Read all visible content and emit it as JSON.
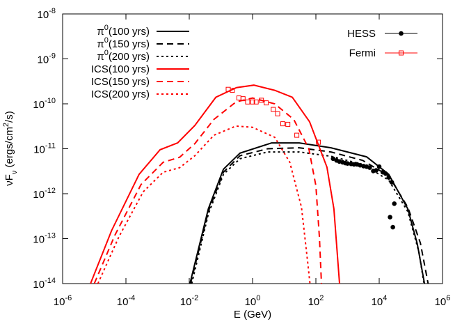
{
  "chart_data": {
    "type": "line",
    "xscale": "log",
    "yscale": "log",
    "xlabel": "E (GeV)",
    "ylabel": [
      "νF",
      "ν",
      " (ergs/cm",
      "2",
      "/s)"
    ],
    "xlim": [
      1e-06,
      1000000.0
    ],
    "ylim": [
      1e-14,
      1e-08
    ],
    "xticks": [
      {
        "value": 1e-06,
        "label": [
          "10",
          "-6"
        ]
      },
      {
        "value": 0.0001,
        "label": [
          "10",
          "-4"
        ]
      },
      {
        "value": 0.01,
        "label": [
          "10",
          "-2"
        ]
      },
      {
        "value": 1,
        "label": [
          "10",
          "0"
        ]
      },
      {
        "value": 100,
        "label": [
          "10",
          "2"
        ]
      },
      {
        "value": 10000.0,
        "label": [
          "10",
          "4"
        ]
      },
      {
        "value": 1000000.0,
        "label": [
          "10",
          "6"
        ]
      }
    ],
    "yticks": [
      {
        "value": 1e-14,
        "label": [
          "10",
          "-14"
        ]
      },
      {
        "value": 1e-13,
        "label": [
          "10",
          "-13"
        ]
      },
      {
        "value": 1e-12,
        "label": [
          "10",
          "-12"
        ]
      },
      {
        "value": 1e-11,
        "label": [
          "10",
          "-11"
        ]
      },
      {
        "value": 1e-10,
        "label": [
          "10",
          "-10"
        ]
      },
      {
        "value": 1e-09,
        "label": [
          "10",
          "-9"
        ]
      },
      {
        "value": 1e-08,
        "label": [
          "10",
          "-8"
        ]
      }
    ],
    "series": [
      {
        "name": [
          "π",
          "0",
          "(100 yrs)"
        ],
        "color": "#000000",
        "style": "solid",
        "legend": "left",
        "x": [
          0.0105,
          0.04,
          0.12,
          0.4,
          4,
          30,
          300,
          4000,
          20000,
          80000,
          160000,
          270000
        ],
        "values": [
          1e-14,
          4.6e-13,
          3.5e-12,
          8e-12,
          1.35e-11,
          1.35e-11,
          1.05e-11,
          6.6e-12,
          2.7e-12,
          4.6e-13,
          7.6e-14,
          1e-14
        ]
      },
      {
        "name": [
          "π",
          "0",
          "(150 yrs)"
        ],
        "color": "#000000",
        "style": "dashed",
        "legend": "left",
        "x": [
          0.011,
          0.04,
          0.12,
          0.4,
          3,
          30,
          300,
          3000,
          20000,
          80000,
          200000,
          350000
        ],
        "values": [
          1e-14,
          4e-13,
          3e-12,
          7e-12,
          1e-11,
          1.05e-11,
          8.5e-12,
          5.5e-12,
          2.5e-12,
          5e-13,
          8e-14,
          1e-14
        ]
      },
      {
        "name": [
          "π",
          "0",
          "(200 yrs)"
        ],
        "color": "#000000",
        "style": "dotted",
        "legend": "left",
        "x": [
          0.012,
          0.04,
          0.12,
          0.4,
          3,
          30,
          300,
          3000,
          20000,
          80000,
          180000,
          260000
        ],
        "values": [
          1e-14,
          3.5e-13,
          2.7e-12,
          6e-12,
          8.5e-12,
          8.5e-12,
          6.8e-12,
          4.5e-12,
          2e-12,
          4e-13,
          5e-14,
          1e-14
        ]
      },
      {
        "name": "ICS(100 yrs)",
        "color": "#ff0000",
        "style": "solid",
        "legend": "left",
        "x": [
          7.6e-06,
          3.5e-05,
          0.00026,
          0.0012,
          0.0043,
          0.015,
          0.069,
          0.31,
          1.1,
          5,
          18,
          63,
          224,
          370,
          560
        ],
        "values": [
          1e-14,
          1.5e-13,
          2.7e-12,
          9.5e-12,
          1.35e-11,
          3.3e-11,
          1.4e-10,
          2.3e-10,
          2.6e-10,
          2e-10,
          1.4e-10,
          4e-11,
          3.9e-12,
          4.6e-13,
          1e-14
        ]
      },
      {
        "name": "ICS(150 yrs)",
        "color": "#ff0000",
        "style": "dashed",
        "legend": "left",
        "x": [
          1e-05,
          4.5e-05,
          0.0003,
          0.0015,
          0.005,
          0.015,
          0.06,
          0.3,
          1,
          5,
          20,
          60,
          100,
          130,
          150
        ],
        "values": [
          1e-14,
          1.2e-13,
          1.6e-12,
          5e-12,
          6.5e-12,
          1.3e-11,
          4.5e-11,
          1.1e-10,
          1.35e-10,
          1e-10,
          4.5e-11,
          1e-11,
          1.5e-12,
          1e-13,
          1e-14
        ]
      },
      {
        "name": "ICS(200 yrs)",
        "color": "#ff0000",
        "style": "dotted",
        "legend": "left",
        "x": [
          1.3e-05,
          6e-05,
          0.00035,
          0.0015,
          0.005,
          0.015,
          0.06,
          0.3,
          1,
          5,
          15,
          35,
          55,
          65
        ],
        "values": [
          1e-14,
          1.1e-13,
          1.1e-12,
          3e-12,
          3.8e-12,
          7e-12,
          2e-11,
          3.2e-11,
          3e-11,
          1.8e-11,
          5e-12,
          5e-13,
          3e-14,
          1e-14
        ]
      },
      {
        "name": "HESS",
        "color": "#000000",
        "style": "points",
        "marker": "circle",
        "legend": "right",
        "x": [
          350,
          450,
          550,
          700,
          850,
          1000,
          1300,
          1600,
          2000,
          2500,
          3200,
          4000,
          5000,
          6500,
          8000,
          10000,
          13000,
          16000,
          20000,
          25000,
          30000,
          22000,
          27000
        ],
        "values": [
          6e-12,
          5.5e-12,
          5.2e-12,
          5e-12,
          4.8e-12,
          4.7e-12,
          4.6e-12,
          4.5e-12,
          4.5e-12,
          4.3e-12,
          4.1e-12,
          4e-12,
          3.8e-12,
          3.2e-12,
          3.3e-12,
          4e-12,
          3e-12,
          2.8e-12,
          2.3e-12,
          1.8e-12,
          6e-13,
          3e-13,
          1.8e-13
        ]
      },
      {
        "name": "Fermi",
        "color": "#ff0000",
        "style": "points",
        "marker": "square",
        "legend": "right",
        "x": [
          0.17,
          0.23,
          0.37,
          0.5,
          0.7,
          1,
          1.3,
          1.9,
          2.7,
          4.5,
          6.2,
          9,
          13,
          25,
          120
        ],
        "values": [
          2.1e-10,
          2e-10,
          1.35e-10,
          1.3e-10,
          1.1e-10,
          1.1e-10,
          1.1e-10,
          1.2e-10,
          1.05e-10,
          7.5e-11,
          6e-11,
          3.6e-11,
          3.5e-11,
          2e-11,
          1.4e-11
        ]
      }
    ]
  }
}
